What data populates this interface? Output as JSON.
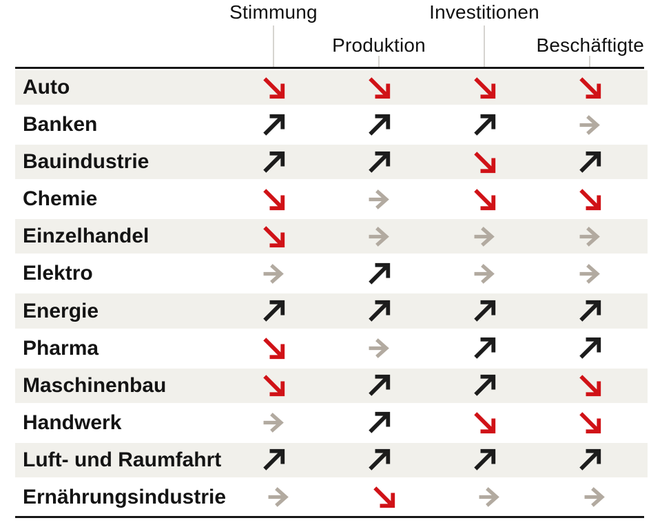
{
  "chart_data": {
    "type": "table",
    "columns": [
      "Stimmung",
      "Produktion",
      "Investitionen",
      "Beschäftigte"
    ],
    "rows": [
      {
        "sector": "Auto",
        "values": [
          "down",
          "down",
          "down",
          "down"
        ]
      },
      {
        "sector": "Banken",
        "values": [
          "up",
          "up",
          "up",
          "flat"
        ]
      },
      {
        "sector": "Bauindustrie",
        "values": [
          "up",
          "up",
          "down",
          "up"
        ]
      },
      {
        "sector": "Chemie",
        "values": [
          "down",
          "flat",
          "down",
          "down"
        ]
      },
      {
        "sector": "Einzelhandel",
        "values": [
          "down",
          "flat",
          "flat",
          "flat"
        ]
      },
      {
        "sector": "Elektro",
        "values": [
          "flat",
          "up",
          "flat",
          "flat"
        ]
      },
      {
        "sector": "Energie",
        "values": [
          "up",
          "up",
          "up",
          "up"
        ]
      },
      {
        "sector": "Pharma",
        "values": [
          "down",
          "flat",
          "up",
          "up"
        ]
      },
      {
        "sector": "Maschinenbau",
        "values": [
          "down",
          "up",
          "up",
          "down"
        ]
      },
      {
        "sector": "Handwerk",
        "values": [
          "flat",
          "up",
          "down",
          "down"
        ]
      },
      {
        "sector": "Luft- und Raumfahrt",
        "values": [
          "up",
          "up",
          "up",
          "up"
        ]
      },
      {
        "sector": "Ernährungsindustrie",
        "values": [
          "flat",
          "down",
          "flat",
          "flat"
        ]
      }
    ],
    "value_encoding": {
      "up": "black up-right arrow (rising)",
      "down": "red down-right arrow (falling)",
      "flat": "gray right arrow (unchanged)"
    },
    "legend_position": "none",
    "grid": "alternating row shading"
  },
  "arrow_colors": {
    "up": "#1c1c1c",
    "down": "#d01217",
    "flat": "#b2aaa0"
  },
  "style_colors": {
    "row_shade": "#f1f0eb",
    "rule": "#161616",
    "tick": "#d6d4d0"
  }
}
